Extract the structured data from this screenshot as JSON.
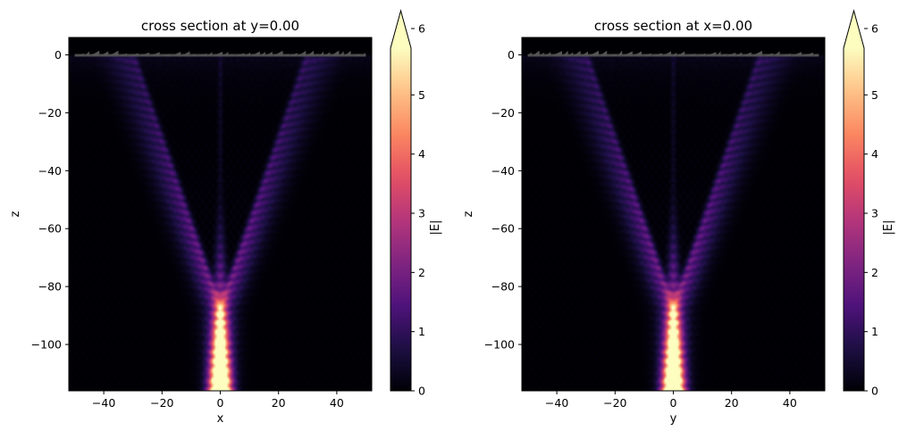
{
  "chart_data": [
    {
      "type": "heatmap",
      "title": "cross section at y=0.00",
      "xlabel": "x",
      "ylabel": "z",
      "xlim": [
        -52,
        52
      ],
      "ylim": [
        -116,
        6
      ],
      "xticks": [
        -40,
        -20,
        0,
        20,
        40
      ],
      "xtick_labels": [
        "−40",
        "−20",
        "0",
        "20",
        "40"
      ],
      "yticks": [
        0,
        -20,
        -40,
        -60,
        -80,
        -100
      ],
      "ytick_labels": [
        "0",
        "−20",
        "−40",
        "−60",
        "−80",
        "−100"
      ],
      "colormap": "magma",
      "colorbar": {
        "label": "|E|",
        "range": [
          0,
          6
        ],
        "ticks": [
          0,
          1,
          2,
          3,
          4,
          5,
          6
        ],
        "tick_labels": [
          "0",
          "1",
          "2",
          "3",
          "4",
          "5",
          "6"
        ],
        "extend": "max"
      },
      "features": {
        "structure_at_z": 0,
        "focus_x": 0,
        "focus_z_range": [
          -116,
          -80
        ],
        "peak_value": 6,
        "cone_branches": [
          [
            0,
            -85
          ],
          [
            -30,
            0
          ],
          [
            30,
            0
          ]
        ]
      }
    },
    {
      "type": "heatmap",
      "title": "cross section at x=0.00",
      "xlabel": "y",
      "ylabel": "z",
      "xlim": [
        -52,
        52
      ],
      "ylim": [
        -116,
        6
      ],
      "xticks": [
        -40,
        -20,
        0,
        20,
        40
      ],
      "xtick_labels": [
        "−40",
        "−20",
        "0",
        "20",
        "40"
      ],
      "yticks": [
        0,
        -20,
        -40,
        -60,
        -80,
        -100
      ],
      "ytick_labels": [
        "0",
        "−20",
        "−40",
        "−60",
        "−80",
        "−100"
      ],
      "colormap": "magma",
      "colorbar": {
        "label": "|E|",
        "range": [
          0,
          6
        ],
        "ticks": [
          0,
          1,
          2,
          3,
          4,
          5,
          6
        ],
        "tick_labels": [
          "0",
          "1",
          "2",
          "3",
          "4",
          "5",
          "6"
        ],
        "extend": "max"
      },
      "features": {
        "structure_at_z": 0,
        "focus_x": 0,
        "focus_z_range": [
          -116,
          -80
        ],
        "peak_value": 6,
        "cone_branches": [
          [
            0,
            -85
          ],
          [
            -30,
            0
          ],
          [
            30,
            0
          ]
        ]
      }
    }
  ]
}
